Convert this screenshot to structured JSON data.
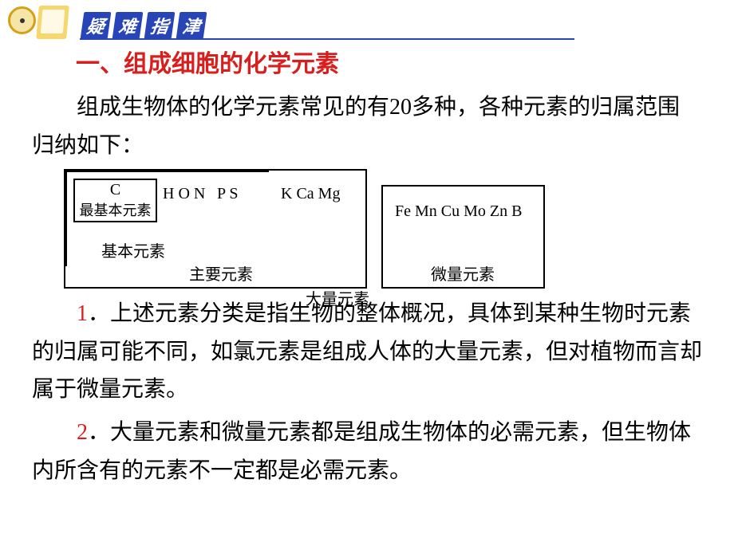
{
  "banner": {
    "char1": "疑",
    "char2": "难",
    "char3": "指",
    "char4": "津"
  },
  "heading": "一、组成细胞的化学元素",
  "intro": {
    "part1": "组成生物体的化学元素常见的有",
    "number": "20",
    "part2": "多种，各种元素的归属范围归纳如下："
  },
  "diagram": {
    "element_c": "C",
    "most_basic": "最基本元素",
    "hon": "H O N",
    "basic": "基本元素",
    "ps": "P S",
    "main": "主要元素",
    "kcamg": "K Ca Mg",
    "macro": "大量元素",
    "micro_elements": "Fe Mn Cu Mo Zn B",
    "micro": "微量元素"
  },
  "point1": {
    "num": "1",
    "text": "．上述元素分类是指生物的整体概况，具体到某种生物时元素的归属可能不同，如氯元素是组成人体的大量元素，但对植物而言却属于微量元素。"
  },
  "point2": {
    "num": "2",
    "text": "．大量元素和微量元素都是组成生物体的必需元素，但生物体内所含有的元素不一定都是必需元素。"
  }
}
